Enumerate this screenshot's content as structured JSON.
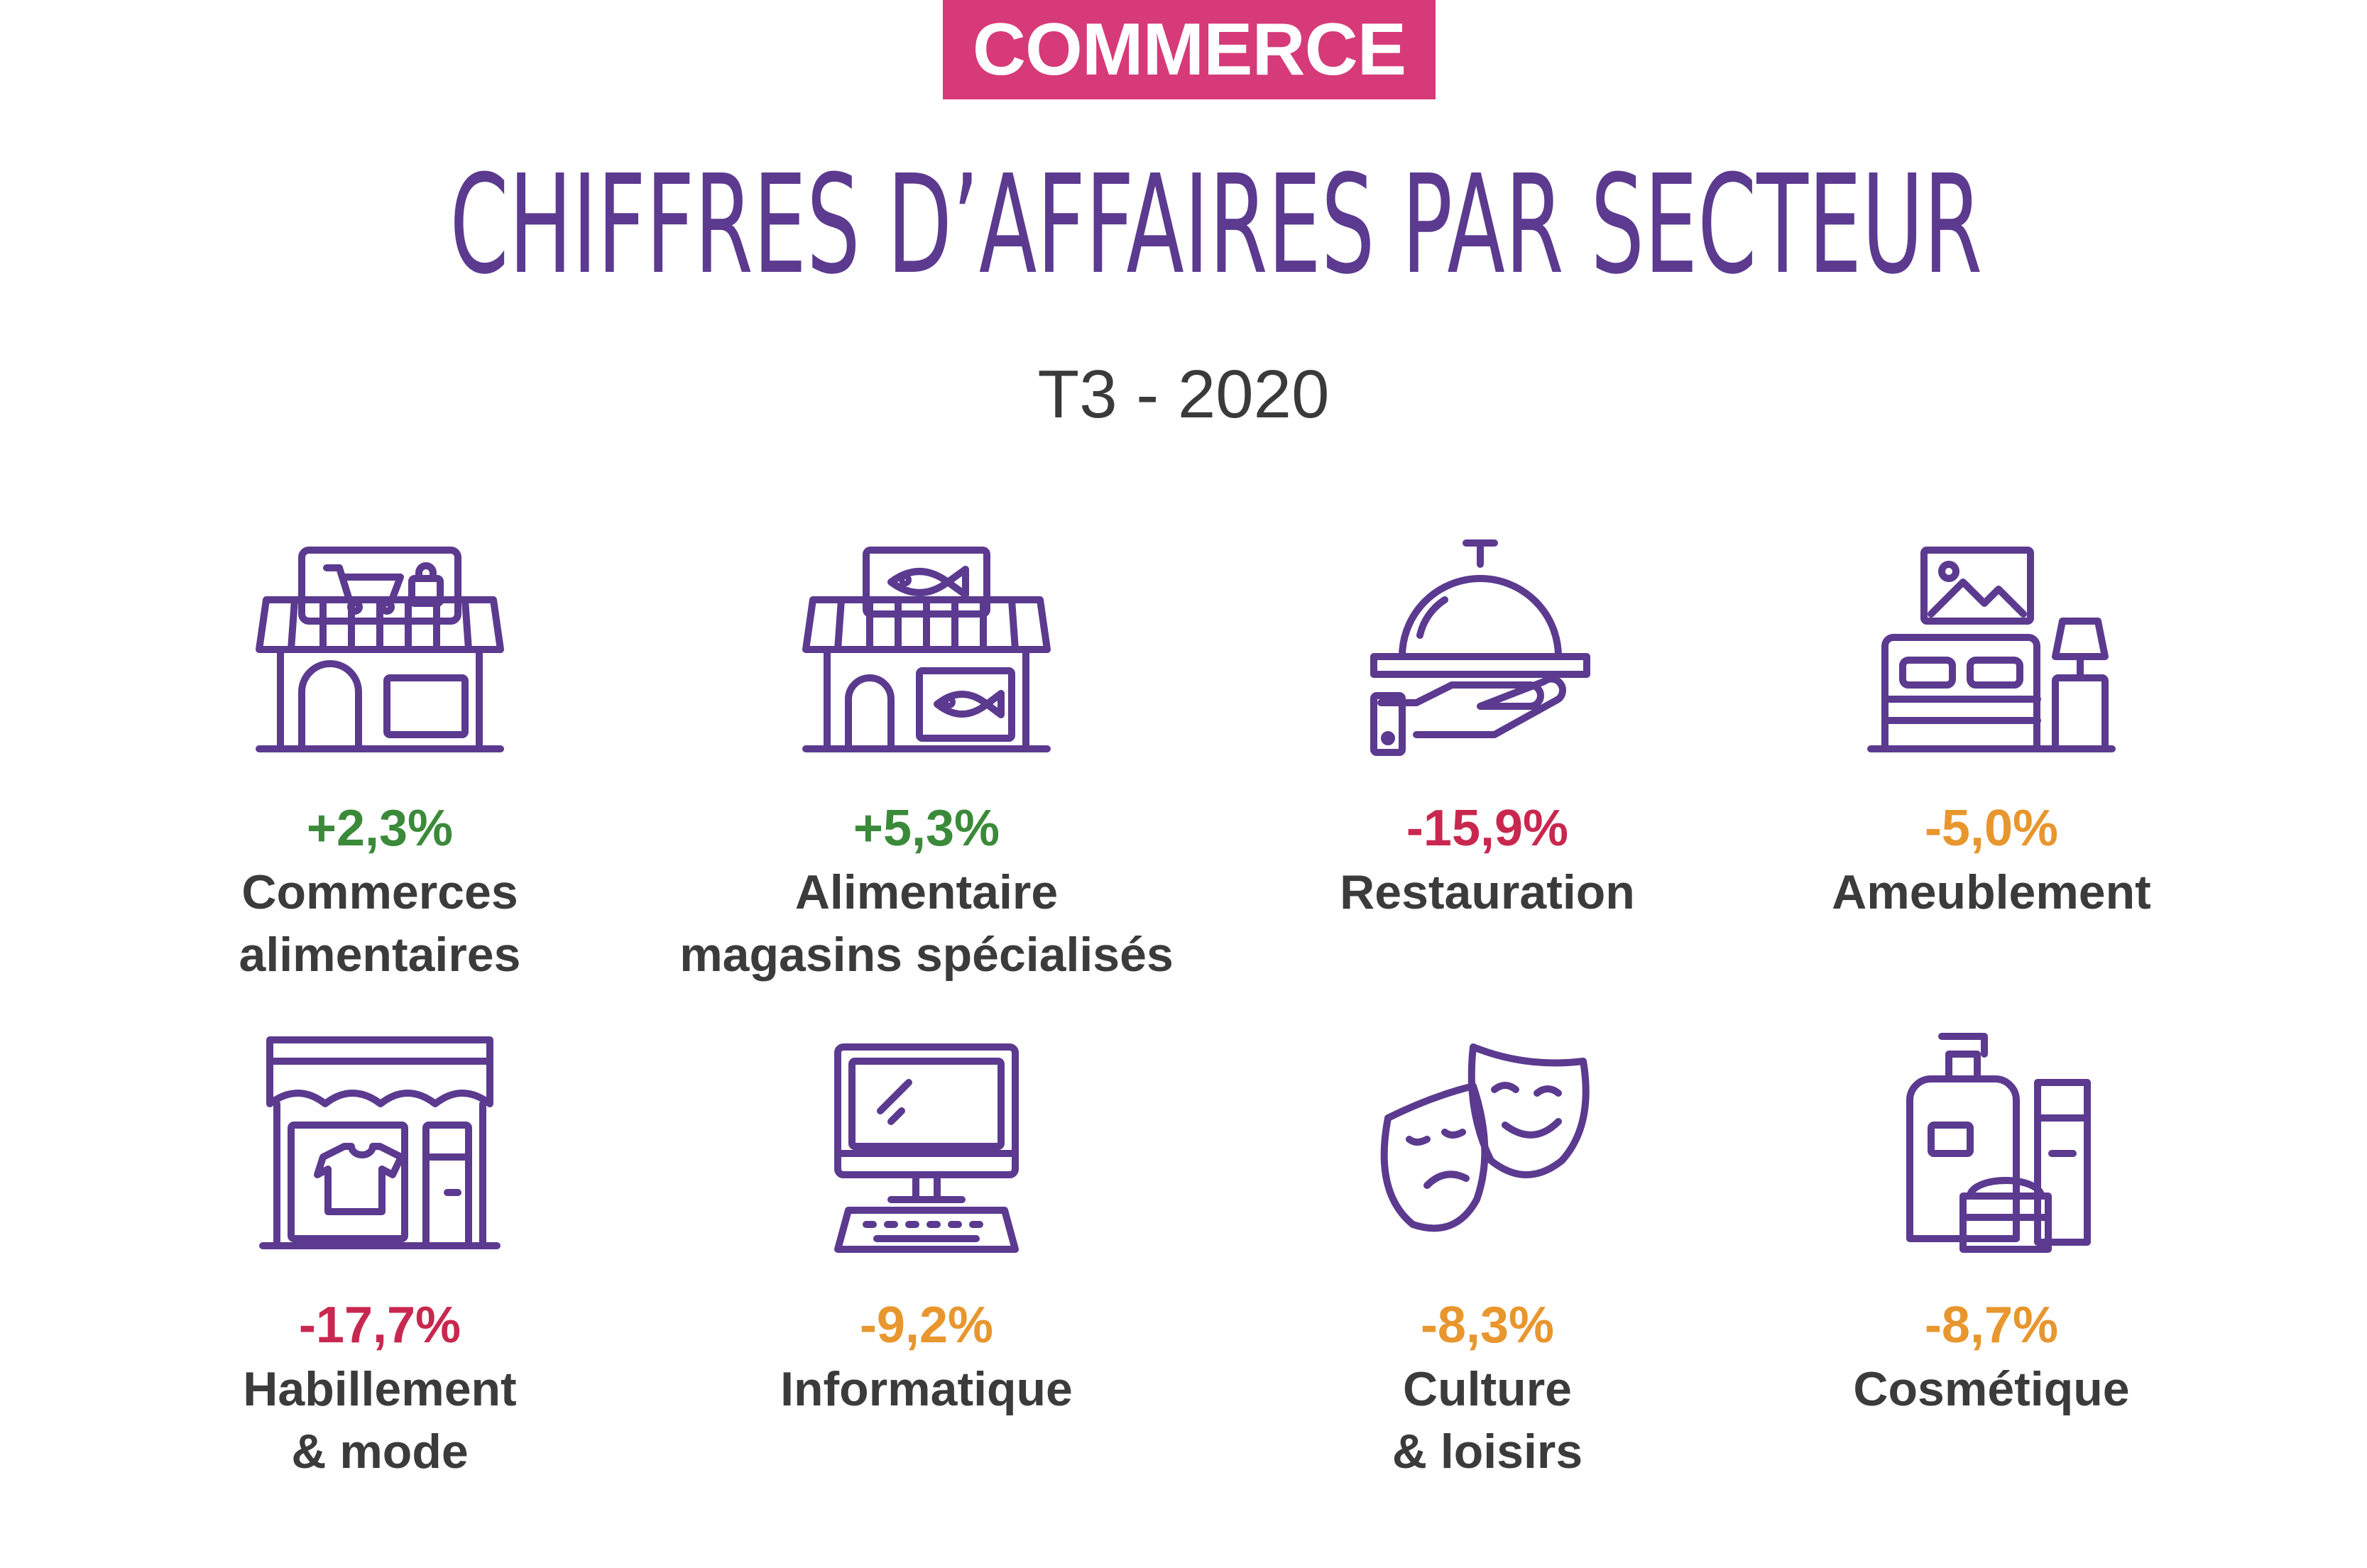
{
  "header": {
    "badge": "COMMERCE",
    "title": "CHIFFRES D’AFFAIRES PAR SECTEUR",
    "subtitle": "T3 - 2020"
  },
  "colors": {
    "accent_purple": "#5b3a8f",
    "badge_pink": "#d63a78",
    "positive_green": "#3a8a3a",
    "negative_red": "#c8284f",
    "moderate_orange": "#e8962e",
    "label_gray": "#3b3b3b"
  },
  "sectors": [
    {
      "value": "+2,3%",
      "label_line1": "Commerces",
      "label_line2": "alimentaires",
      "icon": "grocery-store-icon",
      "status_color": "#3a8a3a"
    },
    {
      "value": "+5,3%",
      "label_line1": "Alimentaire",
      "label_line2": "magasins spécialisés",
      "icon": "fish-shop-icon",
      "status_color": "#3a8a3a"
    },
    {
      "value": "-15,9%",
      "label_line1": "Restauration",
      "label_line2": "",
      "icon": "cloche-serving-icon",
      "status_color": "#c8284f"
    },
    {
      "value": "-5,0%",
      "label_line1": "Ameublement",
      "label_line2": "",
      "icon": "bedroom-furniture-icon",
      "status_color": "#e8962e"
    },
    {
      "value": "-17,7%",
      "label_line1": "Habillement",
      "label_line2": "& mode",
      "icon": "clothing-store-icon",
      "status_color": "#c8284f"
    },
    {
      "value": "-9,2%",
      "label_line1": "Informatique",
      "label_line2": "",
      "icon": "desktop-computer-icon",
      "status_color": "#e8962e"
    },
    {
      "value": "-8,3%",
      "label_line1": "Culture",
      "label_line2": "& loisirs",
      "icon": "theater-masks-icon",
      "status_color": "#e8962e"
    },
    {
      "value": "-8,7%",
      "label_line1": "Cosmétique",
      "label_line2": "",
      "icon": "cosmetics-icon",
      "status_color": "#e8962e"
    }
  ]
}
